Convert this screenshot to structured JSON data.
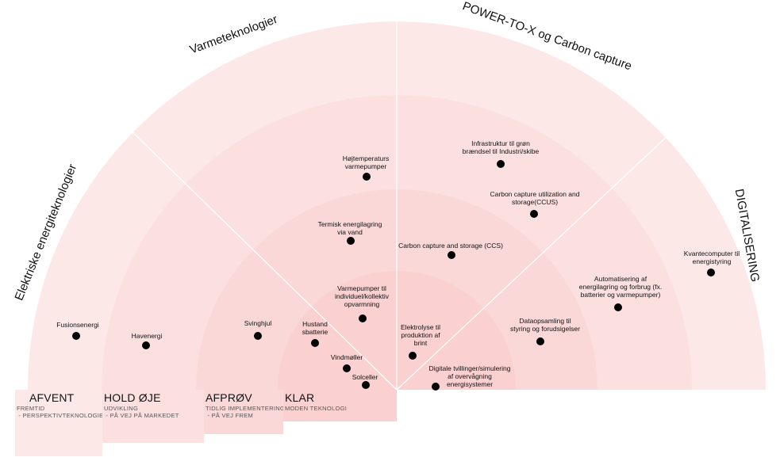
{
  "sectors": [
    {
      "id": "elektriske",
      "title": "Elektriske energiteknologier"
    },
    {
      "id": "varme",
      "title": "Varmeteknologier"
    },
    {
      "id": "ptx",
      "title": "POWER-TO-X og Carbon capture"
    },
    {
      "id": "digital",
      "title": "DIGITALISERING"
    }
  ],
  "rings": [
    {
      "id": "afvent",
      "title": "AFVENT",
      "sub1": "FREMTID",
      "sub2": " - PERSPEKTIVTEKNOLOGIER"
    },
    {
      "id": "hold",
      "title": "HOLD ØJE",
      "sub1": "UDVIKLING",
      "sub2": " - PÅ VEJ PÅ MARKEDET"
    },
    {
      "id": "afprov",
      "title": "AFPRØV",
      "sub1": "TIDLIG IMPLEMENTERING",
      "sub2": " - PÅ VEJ FREM"
    },
    {
      "id": "klar",
      "title": "KLAR",
      "sub1": "MODEN TEKNOLOGI",
      "sub2": ""
    }
  ],
  "technologies": [
    {
      "id": "fusion",
      "label": [
        "Fusionsenergi"
      ],
      "sector": "elektriske",
      "ring": "afvent"
    },
    {
      "id": "havenergi",
      "label": [
        "Havenergi"
      ],
      "sector": "elektriske",
      "ring": "hold"
    },
    {
      "id": "svinghjul",
      "label": [
        "Svinghjul"
      ],
      "sector": "elektriske",
      "ring": "afprov"
    },
    {
      "id": "hustand",
      "label": [
        "Hustand",
        "sbatterie"
      ],
      "sector": "elektriske",
      "ring": "klar"
    },
    {
      "id": "vindmoller",
      "label": [
        "Vindmøller"
      ],
      "sector": "elektriske",
      "ring": "klar"
    },
    {
      "id": "solceller",
      "label": [
        "Solceller"
      ],
      "sector": "elektriske",
      "ring": "klar"
    },
    {
      "id": "hojtemp",
      "label": [
        "Højtemperaturs",
        "varmepumper"
      ],
      "sector": "varme",
      "ring": "hold"
    },
    {
      "id": "termisk",
      "label": [
        "Termisk energilagring",
        "via vand"
      ],
      "sector": "varme",
      "ring": "afprov"
    },
    {
      "id": "varmepumper",
      "label": [
        "Varmepumper til",
        "individuel/kollektiv",
        "opvarmning"
      ],
      "sector": "varme",
      "ring": "klar"
    },
    {
      "id": "infra",
      "label": [
        "Infrastruktur til grøn",
        "brændsel til Industri/skibe"
      ],
      "sector": "ptx",
      "ring": "hold"
    },
    {
      "id": "ccus",
      "label": [
        "Carbon capture utilization and",
        "storage(CCUS)"
      ],
      "sector": "ptx",
      "ring": "hold"
    },
    {
      "id": "ccs",
      "label": [
        "Carbon capture and storage (CCS)"
      ],
      "sector": "ptx",
      "ring": "afprov"
    },
    {
      "id": "elektrolyse",
      "label": [
        "Elektrolyse til",
        "produktion af",
        "brint"
      ],
      "sector": "ptx",
      "ring": "klar"
    },
    {
      "id": "kvante",
      "label": [
        "Kvantecomputer til",
        "energistyring"
      ],
      "sector": "digital",
      "ring": "afvent"
    },
    {
      "id": "automatisering",
      "label": [
        "Automatisering af",
        "energilagring og forbrug (fx.",
        "batterier og varmepumper)"
      ],
      "sector": "digital",
      "ring": "hold"
    },
    {
      "id": "dataopsamling",
      "label": [
        "Dataopsamling til",
        "styring og forudsigelser"
      ],
      "sector": "digital",
      "ring": "afprov"
    },
    {
      "id": "tvillinger",
      "label": [
        "Digitale tvillinger/simulering",
        "af overvågning",
        "energisystemer"
      ],
      "sector": "digital",
      "ring": "klar"
    }
  ]
}
